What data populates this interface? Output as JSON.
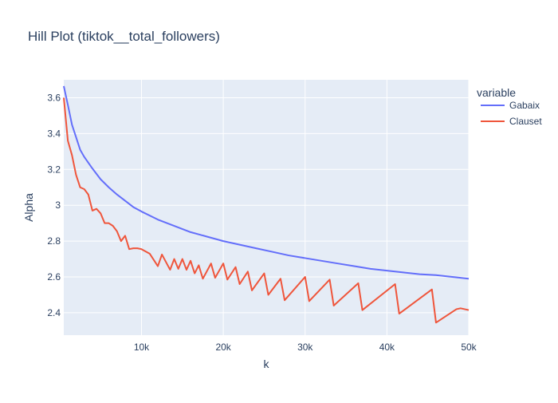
{
  "chart_data": {
    "type": "line",
    "title": "Hill Plot (tiktok__total_followers)",
    "xlabel": "k",
    "ylabel": "Alpha",
    "xlim": [
      500,
      50000
    ],
    "ylim": [
      2.275,
      3.7
    ],
    "grid": true,
    "legend": {
      "title": "variable",
      "position": "right"
    },
    "x_ticks": [
      {
        "value": 10000,
        "label": "10k"
      },
      {
        "value": 20000,
        "label": "20k"
      },
      {
        "value": 30000,
        "label": "30k"
      },
      {
        "value": 40000,
        "label": "40k"
      },
      {
        "value": 50000,
        "label": "50k"
      }
    ],
    "y_ticks": [
      {
        "value": 2.4,
        "label": "2.4"
      },
      {
        "value": 2.6,
        "label": "2.6"
      },
      {
        "value": 2.8,
        "label": "2.8"
      },
      {
        "value": 3.0,
        "label": "3"
      },
      {
        "value": 3.2,
        "label": "3.2"
      },
      {
        "value": 3.4,
        "label": "3.4"
      },
      {
        "value": 3.6,
        "label": "3.6"
      }
    ],
    "series": [
      {
        "name": "Gabaix",
        "color": "#636efa",
        "points": [
          [
            500,
            3.665
          ],
          [
            1000,
            3.56
          ],
          [
            1500,
            3.45
          ],
          [
            2000,
            3.38
          ],
          [
            2500,
            3.31
          ],
          [
            3000,
            3.27
          ],
          [
            4000,
            3.205
          ],
          [
            5000,
            3.145
          ],
          [
            6000,
            3.1
          ],
          [
            7000,
            3.06
          ],
          [
            8000,
            3.025
          ],
          [
            9000,
            2.99
          ],
          [
            10000,
            2.965
          ],
          [
            12000,
            2.92
          ],
          [
            14000,
            2.885
          ],
          [
            16000,
            2.85
          ],
          [
            18000,
            2.825
          ],
          [
            20000,
            2.8
          ],
          [
            22000,
            2.78
          ],
          [
            24000,
            2.76
          ],
          [
            26000,
            2.74
          ],
          [
            28000,
            2.72
          ],
          [
            30000,
            2.705
          ],
          [
            32000,
            2.69
          ],
          [
            34000,
            2.675
          ],
          [
            36000,
            2.66
          ],
          [
            38000,
            2.645
          ],
          [
            40000,
            2.635
          ],
          [
            42000,
            2.625
          ],
          [
            44000,
            2.615
          ],
          [
            46000,
            2.61
          ],
          [
            48000,
            2.6
          ],
          [
            50000,
            2.59
          ]
        ]
      },
      {
        "name": "Clauset",
        "color": "#ef553b",
        "points": [
          [
            500,
            3.6
          ],
          [
            1000,
            3.36
          ],
          [
            1500,
            3.28
          ],
          [
            2000,
            3.17
          ],
          [
            2500,
            3.1
          ],
          [
            3000,
            3.09
          ],
          [
            3500,
            3.06
          ],
          [
            4000,
            2.97
          ],
          [
            4500,
            2.98
          ],
          [
            5000,
            2.955
          ],
          [
            5500,
            2.9
          ],
          [
            6000,
            2.9
          ],
          [
            6500,
            2.885
          ],
          [
            7000,
            2.855
          ],
          [
            7500,
            2.8
          ],
          [
            8000,
            2.83
          ],
          [
            8500,
            2.755
          ],
          [
            9000,
            2.76
          ],
          [
            9500,
            2.76
          ],
          [
            10000,
            2.755
          ],
          [
            11000,
            2.73
          ],
          [
            12000,
            2.66
          ],
          [
            12500,
            2.725
          ],
          [
            13500,
            2.64
          ],
          [
            14000,
            2.7
          ],
          [
            14500,
            2.645
          ],
          [
            15000,
            2.7
          ],
          [
            15500,
            2.64
          ],
          [
            16000,
            2.69
          ],
          [
            16500,
            2.62
          ],
          [
            17000,
            2.665
          ],
          [
            17500,
            2.59
          ],
          [
            18500,
            2.675
          ],
          [
            19000,
            2.595
          ],
          [
            20000,
            2.675
          ],
          [
            20500,
            2.585
          ],
          [
            21500,
            2.655
          ],
          [
            22000,
            2.56
          ],
          [
            23000,
            2.63
          ],
          [
            23500,
            2.525
          ],
          [
            25000,
            2.62
          ],
          [
            25500,
            2.5
          ],
          [
            27000,
            2.59
          ],
          [
            27500,
            2.47
          ],
          [
            30000,
            2.6
          ],
          [
            30500,
            2.465
          ],
          [
            33000,
            2.585
          ],
          [
            33500,
            2.44
          ],
          [
            36500,
            2.565
          ],
          [
            37000,
            2.415
          ],
          [
            41000,
            2.56
          ],
          [
            41500,
            2.395
          ],
          [
            45500,
            2.53
          ],
          [
            46000,
            2.345
          ],
          [
            48500,
            2.42
          ],
          [
            49000,
            2.425
          ],
          [
            50000,
            2.415
          ]
        ]
      }
    ]
  }
}
